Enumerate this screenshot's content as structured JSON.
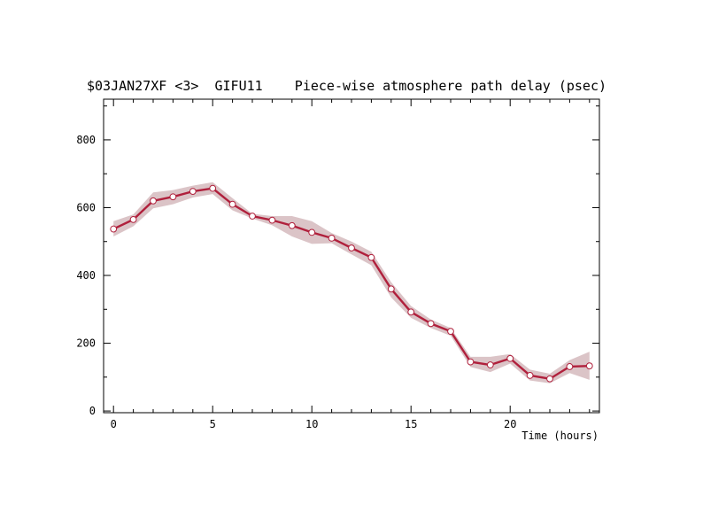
{
  "chart_data": {
    "type": "line",
    "title": "$03JAN27XF <3>  GIFU11    Piece-wise atmosphere path delay (psec)",
    "xlabel": "Time (hours)",
    "ylabel": "",
    "xlim": [
      -0.5,
      24.5
    ],
    "ylim": [
      -5,
      920
    ],
    "x_ticks": [
      0,
      5,
      10,
      15,
      20
    ],
    "x_tick_labels": [
      "0",
      "5",
      "10",
      "15",
      "20"
    ],
    "y_ticks": [
      0,
      200,
      400,
      600,
      800
    ],
    "y_tick_labels": [
      "0",
      "200",
      "400",
      "600",
      "800"
    ],
    "grid": false,
    "series": [
      {
        "x": [
          0,
          1,
          2,
          3,
          4,
          5,
          6,
          7,
          8,
          9,
          10,
          11,
          12,
          13,
          14,
          15,
          16,
          17,
          18,
          19,
          20,
          21,
          22,
          23,
          24
        ],
        "values": [
          537,
          565,
          620,
          632,
          648,
          657,
          610,
          575,
          563,
          547,
          527,
          510,
          481,
          453,
          360,
          292,
          258,
          235,
          145,
          136,
          155,
          105,
          95,
          131,
          133
        ],
        "lower": [
          515,
          545,
          598,
          610,
          630,
          640,
          592,
          568,
          548,
          515,
          493,
          495,
          462,
          430,
          335,
          275,
          245,
          222,
          130,
          115,
          140,
          90,
          82,
          112,
          92
        ],
        "upper": [
          560,
          580,
          645,
          652,
          665,
          675,
          628,
          582,
          575,
          575,
          560,
          525,
          500,
          470,
          380,
          310,
          270,
          245,
          160,
          160,
          168,
          122,
          110,
          150,
          175
        ]
      }
    ],
    "colors": {
      "line": "#b0203c",
      "band": "#dbc4c7",
      "marker_fill": "#ffffff",
      "marker_edge": "#b0203c",
      "axis": "#000000"
    }
  }
}
